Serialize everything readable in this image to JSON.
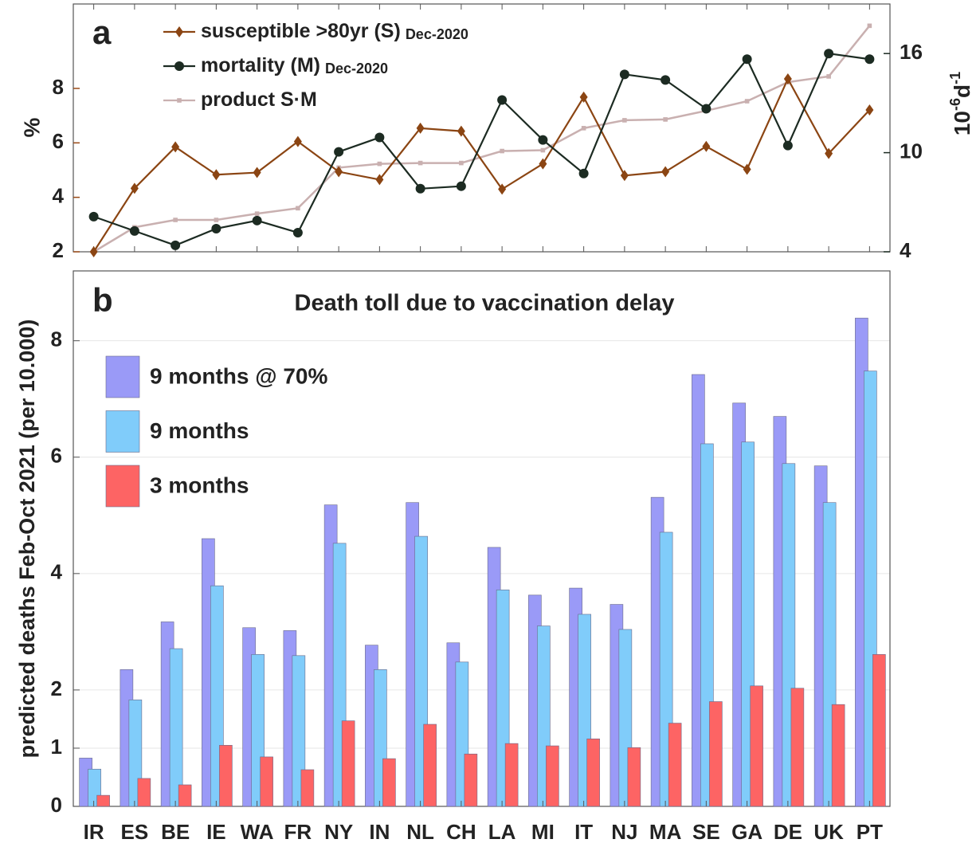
{
  "chart_data": [
    {
      "type": "line",
      "panel_label": "a",
      "ylabel": "%",
      "ycolor": "#9a4a17",
      "y2label": {
        "base": "10",
        "exp1": "-6",
        "unit": "d",
        "exp2": "-1"
      },
      "y2color": "#1c2b22",
      "ylim": [
        2,
        11.1
      ],
      "yticks": [
        2,
        4,
        6,
        8
      ],
      "y2lim": [
        4,
        19
      ],
      "y2ticks": [
        4,
        10,
        16
      ],
      "series": [
        {
          "name": "susceptible >80yr (S)",
          "note": "Dec-2020",
          "color": "#8b4513",
          "marker": "diamond",
          "values": [
            2.0,
            4.33,
            5.85,
            4.83,
            4.91,
            6.05,
            4.94,
            4.65,
            6.54,
            6.43,
            4.3,
            5.23,
            7.68,
            4.8,
            4.94,
            5.87,
            5.03,
            8.35,
            5.61,
            7.21
          ]
        },
        {
          "name": "mortality (M)",
          "note": "Dec-2020",
          "color": "#1c2b22",
          "marker": "circle",
          "axis": "y2",
          "values": [
            6.13,
            5.26,
            4.39,
            5.4,
            5.89,
            5.16,
            10.05,
            10.92,
            7.82,
            7.97,
            13.19,
            10.77,
            8.74,
            14.74,
            14.4,
            12.66,
            15.66,
            10.43,
            16.0,
            15.66
          ]
        },
        {
          "name": "product S·M",
          "color": "#c9b0b0",
          "marker": "square",
          "values": [
            2.0,
            2.9,
            3.17,
            3.17,
            3.4,
            3.6,
            5.09,
            5.23,
            5.26,
            5.26,
            5.7,
            5.73,
            6.54,
            6.83,
            6.86,
            7.18,
            7.53,
            8.23,
            8.44,
            10.3
          ]
        }
      ]
    },
    {
      "type": "bar",
      "panel_label": "b",
      "title": "Death toll due to vaccination delay",
      "ylabel": "predicted deaths Feb-Oct 2021 (per 10.000)",
      "categories": [
        "IR",
        "ES",
        "BE",
        "IE",
        "WA",
        "FR",
        "NY",
        "IN",
        "NL",
        "CH",
        "LA",
        "MI",
        "IT",
        "NJ",
        "MA",
        "SE",
        "GA",
        "DE",
        "UK",
        "PT"
      ],
      "category_colors": [
        "#2a8a2a",
        "#5555bb",
        "#5555bb",
        "#5555bb",
        "#8b1010",
        "#5555bb",
        "#8b1010",
        "#8b1010",
        "#5555bb",
        "#5555bb",
        "#8b1010",
        "#8b1010",
        "#5555bb",
        "#8b1010",
        "#8b1010",
        "#5555bb",
        "#8b1010",
        "#5555bb",
        "#5555bb",
        "#5555bb"
      ],
      "ylim": [
        0,
        9.2
      ],
      "yticks": [
        0,
        1,
        2,
        4,
        6,
        8
      ],
      "grid": true,
      "series": [
        {
          "name": "9 months @ 70%",
          "color": "#9a9af7",
          "values": [
            0.83,
            2.35,
            3.17,
            4.6,
            3.07,
            3.02,
            5.18,
            2.77,
            5.22,
            2.81,
            4.45,
            3.63,
            3.75,
            3.47,
            5.31,
            7.42,
            6.93,
            6.7,
            5.85,
            8.39
          ]
        },
        {
          "name": "9 months",
          "color": "#80ccfa",
          "values": [
            0.64,
            1.83,
            2.71,
            3.79,
            2.61,
            2.59,
            4.52,
            2.35,
            4.64,
            2.48,
            3.72,
            3.1,
            3.3,
            3.04,
            4.71,
            6.23,
            6.26,
            5.89,
            5.22,
            7.48
          ]
        },
        {
          "name": "3 months",
          "color": "#fd6464",
          "values": [
            0.19,
            0.48,
            0.37,
            1.05,
            0.85,
            0.63,
            1.47,
            0.82,
            1.41,
            0.9,
            1.08,
            1.04,
            1.16,
            1.01,
            1.43,
            1.8,
            2.07,
            2.03,
            1.75,
            2.61
          ]
        }
      ]
    }
  ]
}
